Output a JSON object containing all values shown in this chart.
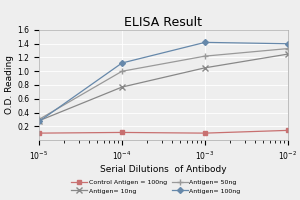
{
  "title": "ELISA Result",
  "xlabel": "Serial Dilutions  of Antibody",
  "ylabel": "O.D. Reading",
  "x_values": [
    0.01,
    0.001,
    0.0001,
    1e-05
  ],
  "series": [
    {
      "label": "Control Antigen = 100ng",
      "color": "#c87070",
      "marker": "s",
      "markersize": 3,
      "linestyle": "-",
      "values": [
        0.14,
        0.1,
        0.11,
        0.1
      ]
    },
    {
      "label": "Antigen= 10ng",
      "color": "#888888",
      "marker": "x",
      "markersize": 4,
      "linestyle": "-",
      "values": [
        1.25,
        1.05,
        0.77,
        0.28
      ]
    },
    {
      "label": "Antigen= 50ng",
      "color": "#999999",
      "marker": "+",
      "markersize": 4,
      "linestyle": "-",
      "values": [
        1.33,
        1.22,
        1.0,
        0.3
      ]
    },
    {
      "label": "Antigen= 100ng",
      "color": "#6688aa",
      "marker": "D",
      "markersize": 3,
      "linestyle": "-",
      "values": [
        1.4,
        1.42,
        1.12,
        0.27
      ]
    }
  ],
  "ylim": [
    0,
    1.6
  ],
  "yticks": [
    0.2,
    0.4,
    0.6,
    0.8,
    1.0,
    1.2,
    1.4,
    1.6
  ],
  "xticks": [
    0.01,
    0.001,
    0.0001,
    1e-05
  ],
  "bg_color": "#eeeeee",
  "plot_bg_color": "#eeeeee",
  "title_fontsize": 9,
  "axis_label_fontsize": 6.5,
  "tick_fontsize": 5.5,
  "legend_fontsize": 4.5
}
